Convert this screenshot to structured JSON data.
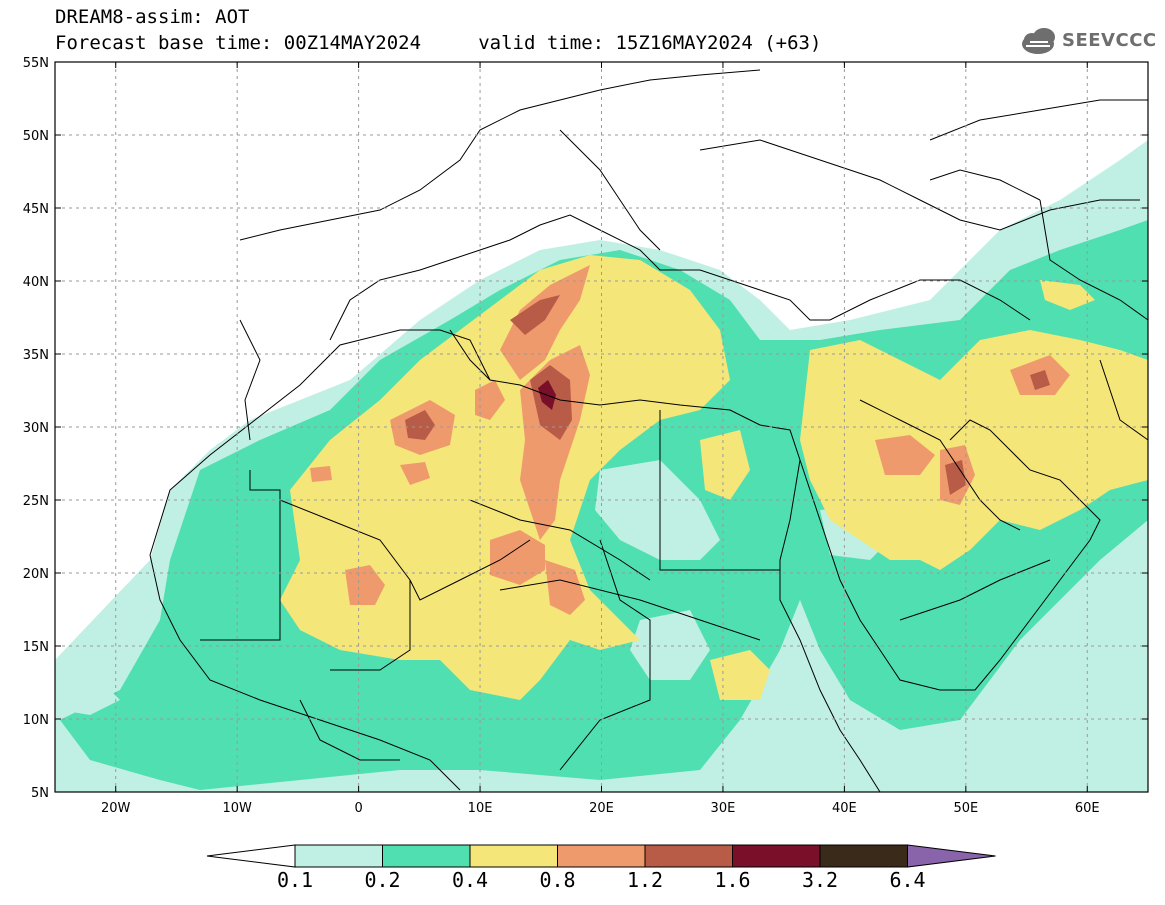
{
  "title": {
    "line1": "DREAM8-assim: AOT",
    "line2": "Forecast base time: 00Z14MAY2024     valid time: 15Z16MAY2024 (+63)"
  },
  "logo": {
    "icon": "cloud-icon",
    "text": "SEEVCCC"
  },
  "map": {
    "projection": "lat-lon",
    "lon_range": [
      -25,
      65
    ],
    "lat_range": [
      5,
      55
    ],
    "gridlines": "dashed",
    "lat_ticks": [
      "5N",
      "10N",
      "15N",
      "20N",
      "25N",
      "30N",
      "35N",
      "40N",
      "45N",
      "50N",
      "55N"
    ],
    "lon_ticks": [
      "20W",
      "10W",
      "0",
      "10E",
      "20E",
      "30E",
      "40E",
      "50E",
      "60E"
    ]
  },
  "colorbar": {
    "levels": [
      "0.1",
      "0.2",
      "0.4",
      "0.8",
      "1.2",
      "1.6",
      "3.2",
      "6.4"
    ],
    "colors": [
      "#ffffff",
      "#c0efe4",
      "#4fdfb0",
      "#f5e67a",
      "#ef9a6c",
      "#b85c48",
      "#7a0f2a",
      "#3a2a1a",
      "#8a64aa"
    ]
  }
}
